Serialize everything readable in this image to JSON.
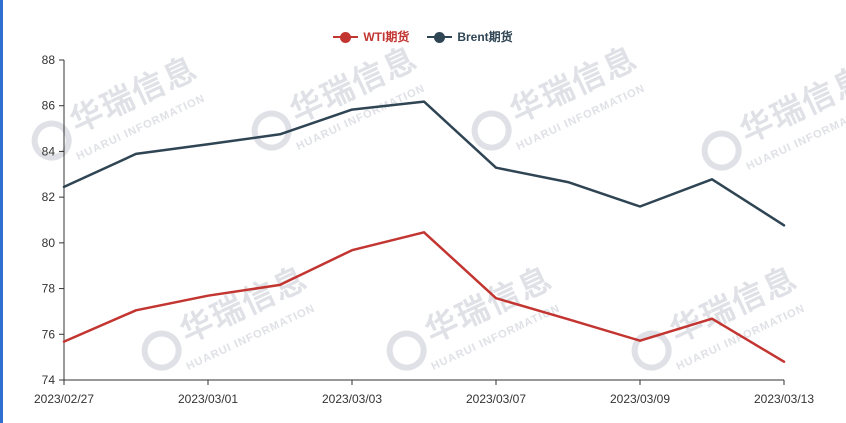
{
  "watermark": {
    "cn": "华瑞信息",
    "en": "HUARUI INFORMATION"
  },
  "colors": {
    "wti": "#c23531",
    "brent": "#2f4554",
    "axis": "#333333",
    "watermark": "#dfe1e6"
  },
  "chart_data": {
    "type": "line",
    "x": [
      "2023/02/27",
      "2023/02/28",
      "2023/03/01",
      "2023/03/02",
      "2023/03/03",
      "2023/03/06",
      "2023/03/07",
      "2023/03/08",
      "2023/03/09",
      "2023/03/10",
      "2023/03/13"
    ],
    "x_tick_labels": [
      "2023/02/27",
      "2023/03/01",
      "2023/03/03",
      "2023/03/07",
      "2023/03/09",
      "2023/03/13"
    ],
    "series": [
      {
        "name": "WTI期货",
        "color": "#c23531",
        "values": [
          75.68,
          77.05,
          77.69,
          78.16,
          79.68,
          80.46,
          77.58,
          76.66,
          75.72,
          76.68,
          74.8
        ]
      },
      {
        "name": "Brent期货",
        "color": "#2f4554",
        "values": [
          82.45,
          83.89,
          84.31,
          84.75,
          85.83,
          86.18,
          83.29,
          82.66,
          81.59,
          82.78,
          80.77
        ]
      }
    ],
    "ylim": [
      74,
      88
    ],
    "y_ticks": [
      74,
      76,
      78,
      80,
      82,
      84,
      86,
      88
    ],
    "legend_position": "top-center",
    "grid": false
  }
}
